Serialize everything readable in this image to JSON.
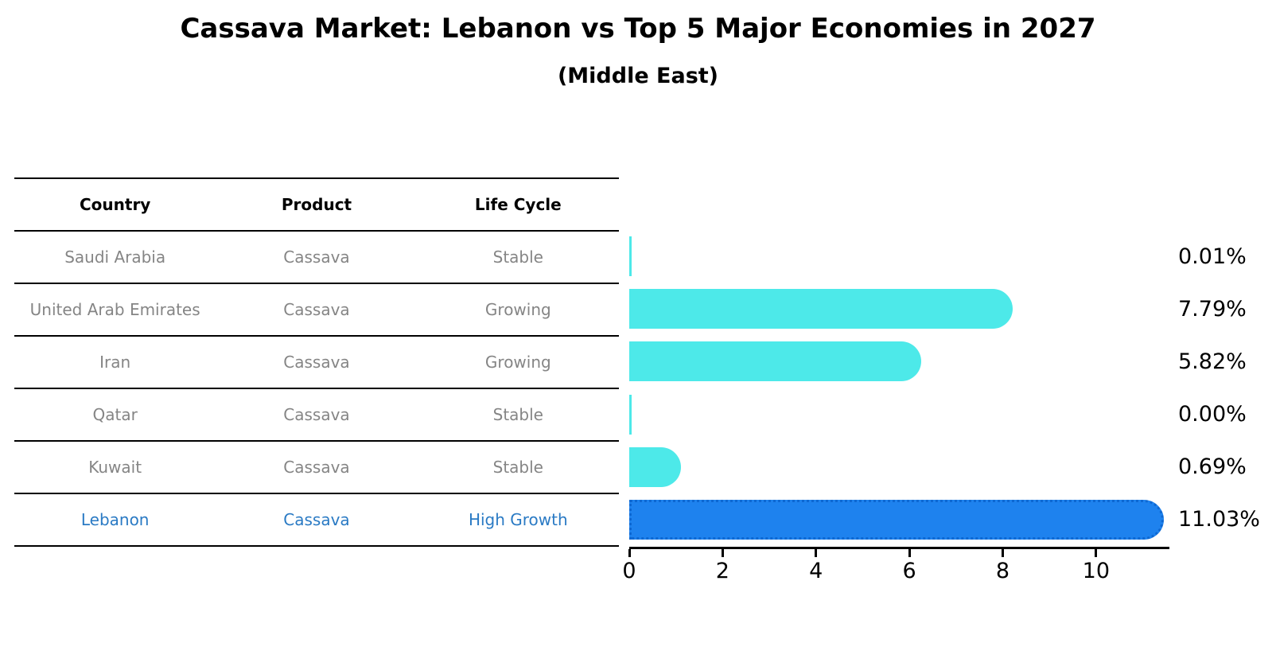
{
  "title": "Cassava Market: Lebanon vs Top 5 Major Economies in 2027",
  "subtitle": "(Middle East)",
  "table": {
    "headers": [
      "Country",
      "Product",
      "Life Cycle"
    ],
    "rows": [
      {
        "country": "Saudi Arabia",
        "product": "Cassava",
        "life_cycle": "Stable",
        "highlight": false
      },
      {
        "country": "United Arab Emirates",
        "product": "Cassava",
        "life_cycle": "Growing",
        "highlight": false
      },
      {
        "country": "Iran",
        "product": "Cassava",
        "life_cycle": "Growing",
        "highlight": false
      },
      {
        "country": "Qatar",
        "product": "Cassava",
        "life_cycle": "Stable",
        "highlight": false
      },
      {
        "country": "Kuwait",
        "product": "Cassava",
        "life_cycle": "Stable",
        "highlight": false
      },
      {
        "country": "Lebanon",
        "product": "Cassava",
        "life_cycle": "High Growth",
        "highlight": true
      }
    ]
  },
  "chart_data": {
    "type": "bar",
    "orientation": "horizontal",
    "title": "Cassava Market: Lebanon vs Top 5 Major Economies in 2027",
    "subtitle": "(Middle East)",
    "categories": [
      "Saudi Arabia",
      "United Arab Emirates",
      "Iran",
      "Qatar",
      "Kuwait",
      "Lebanon"
    ],
    "values": [
      0.01,
      7.79,
      5.82,
      0.0,
      0.69,
      11.03
    ],
    "value_labels": [
      "0.01%",
      "7.79%",
      "5.82%",
      "0.00%",
      "0.69%",
      "11.03%"
    ],
    "x_ticks": [
      0,
      2,
      4,
      6,
      8,
      10
    ],
    "x_tick_labels": [
      "0",
      "2",
      "4",
      "6",
      "8",
      "10"
    ],
    "xlim": [
      0,
      11.57
    ],
    "grid": false,
    "legend": "none",
    "bar_color": "#4DE9E9",
    "highlight_index": 5,
    "highlight_color": "#1E82EE",
    "highlight_border_color": "#0E68D2",
    "highlight_border_style": "dotted",
    "highlight_text_color": "#2A7AC4"
  }
}
